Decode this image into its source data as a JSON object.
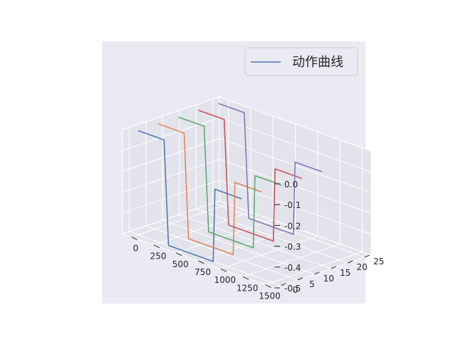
{
  "chart_data": {
    "type": "line",
    "projection": "3d",
    "legend": {
      "entries": [
        "动作曲线"
      ],
      "placement": "top-right"
    },
    "grid": true,
    "axes": {
      "x": {
        "ticks": [
          0,
          250,
          500,
          750,
          1000,
          1250,
          1500
        ],
        "lim": [
          -100,
          1600
        ]
      },
      "y": {
        "ticks": [
          0,
          5,
          10,
          15,
          20,
          25
        ],
        "lim": [
          -2,
          27
        ]
      },
      "z": {
        "ticks": [
          0.0,
          -0.1,
          -0.2,
          -0.3,
          -0.4,
          -0.5
        ],
        "tick_labels": [
          "0.0",
          "-0.1",
          "-0.2",
          "-0.3",
          "-0.4",
          "-0.5"
        ],
        "lim": [
          -0.5,
          0.0
        ]
      }
    },
    "series": [
      {
        "color": "#4c72b0",
        "points": [
          [
            0,
            0,
            0.0
          ],
          [
            290,
            0,
            0.0
          ],
          [
            340,
            0,
            -0.5
          ],
          [
            840,
            0,
            -0.5
          ],
          [
            860,
            0,
            -0.15
          ],
          [
            1160,
            0,
            -0.15
          ]
        ]
      },
      {
        "color": "#dd8452",
        "points": [
          [
            0,
            6,
            0.0
          ],
          [
            290,
            6,
            0.0
          ],
          [
            340,
            6,
            -0.5
          ],
          [
            840,
            6,
            -0.5
          ],
          [
            860,
            6,
            -0.15
          ],
          [
            1160,
            6,
            -0.15
          ]
        ]
      },
      {
        "color": "#55a868",
        "points": [
          [
            0,
            12,
            0.0
          ],
          [
            290,
            12,
            0.0
          ],
          [
            340,
            12,
            -0.5
          ],
          [
            840,
            12,
            -0.5
          ],
          [
            860,
            12,
            -0.15
          ],
          [
            1160,
            12,
            -0.15
          ]
        ]
      },
      {
        "color": "#c44e52",
        "points": [
          [
            0,
            18,
            0.0
          ],
          [
            290,
            18,
            0.0
          ],
          [
            340,
            18,
            -0.5
          ],
          [
            840,
            18,
            -0.5
          ],
          [
            860,
            18,
            -0.15
          ],
          [
            1160,
            18,
            -0.15
          ]
        ]
      },
      {
        "color": "#8172b3",
        "points": [
          [
            0,
            24,
            0.0
          ],
          [
            290,
            24,
            0.0
          ],
          [
            340,
            24,
            -0.5
          ],
          [
            840,
            24,
            -0.5
          ],
          [
            860,
            24,
            -0.15
          ],
          [
            1160,
            24,
            -0.15
          ]
        ]
      }
    ]
  }
}
